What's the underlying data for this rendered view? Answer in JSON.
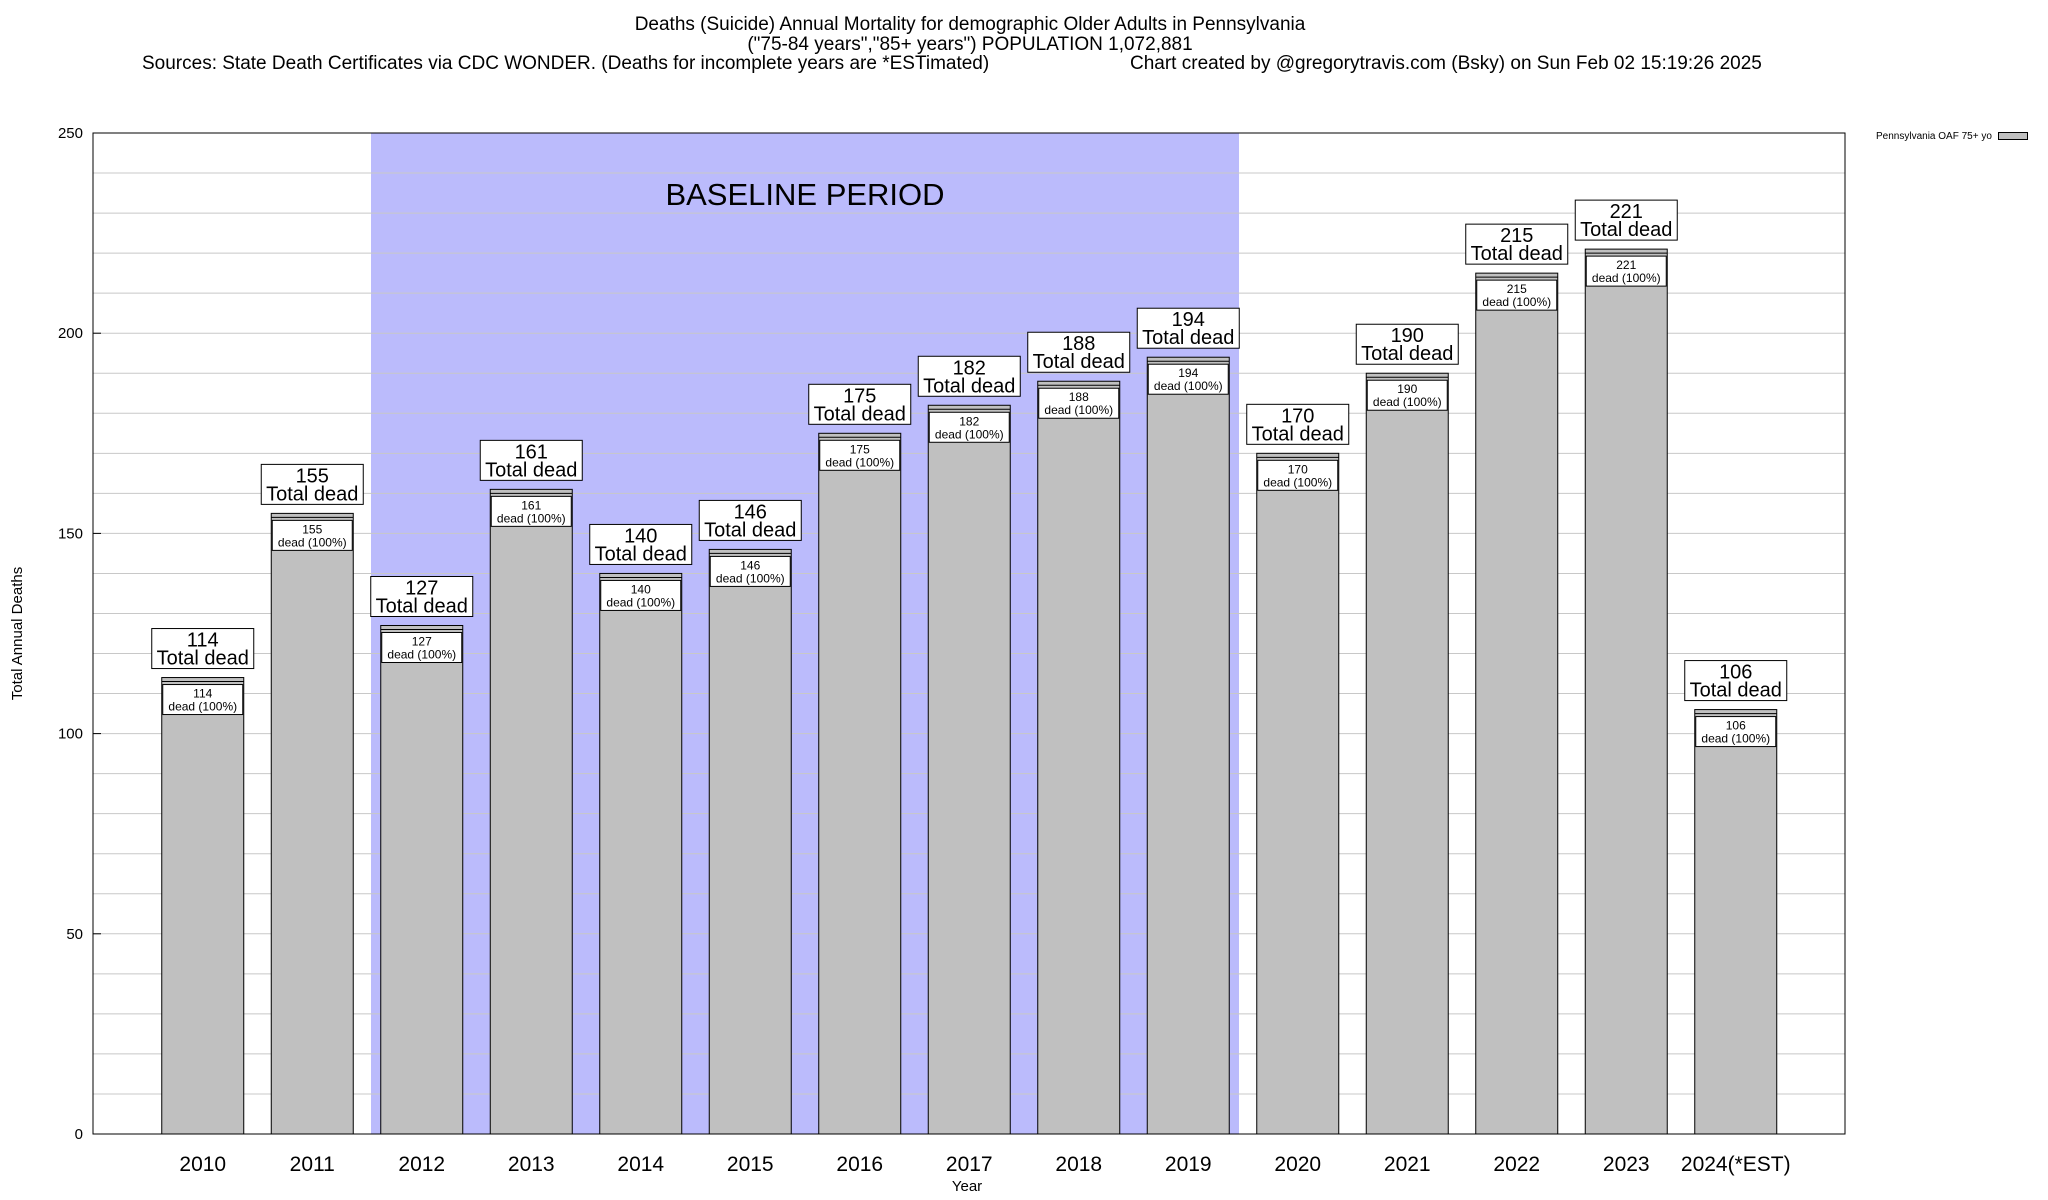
{
  "title": "Deaths (Suicide) Annual Mortality for demographic Older Adults in Pennsylvania",
  "subtitle": "(\"75-84 years\",\"85+ years\") POPULATION 1,072,881",
  "sources": "Sources: State Death Certificates via CDC WONDER. (Deaths for incomplete years are *ESTimated)",
  "credit": "Chart created by @gregorytravis.com (Bsky) on Sun Feb 02 15:19:26 2025",
  "legend_label": "Pennsylvania OAF 75+ yo",
  "colors": {
    "bar": "#c0c0c0",
    "baseline": "#bbbbfc",
    "grid": "#c8c8c8"
  },
  "chart_data": {
    "type": "bar",
    "categories": [
      "2010",
      "2011",
      "2012",
      "2013",
      "2014",
      "2015",
      "2016",
      "2017",
      "2018",
      "2019",
      "2020",
      "2021",
      "2022",
      "2023",
      "2024(*EST)"
    ],
    "series": [
      {
        "name": "Pennsylvania OAF 75+ yo",
        "values": [
          114,
          155,
          127,
          161,
          140,
          146,
          175,
          182,
          188,
          194,
          170,
          190,
          215,
          221,
          106
        ]
      }
    ],
    "top_label_suffix": "Total dead",
    "inner_label_suffix": "dead (100%)",
    "xlabel": "Year",
    "ylabel": "Total Annual Deaths",
    "ylim": [
      0,
      250
    ],
    "yticks": [
      0,
      50,
      100,
      150,
      200,
      250
    ],
    "grid": true,
    "legend_position": "top-right",
    "annotation": {
      "text": "BASELINE PERIOD",
      "from": "2012",
      "to": "2019"
    }
  }
}
